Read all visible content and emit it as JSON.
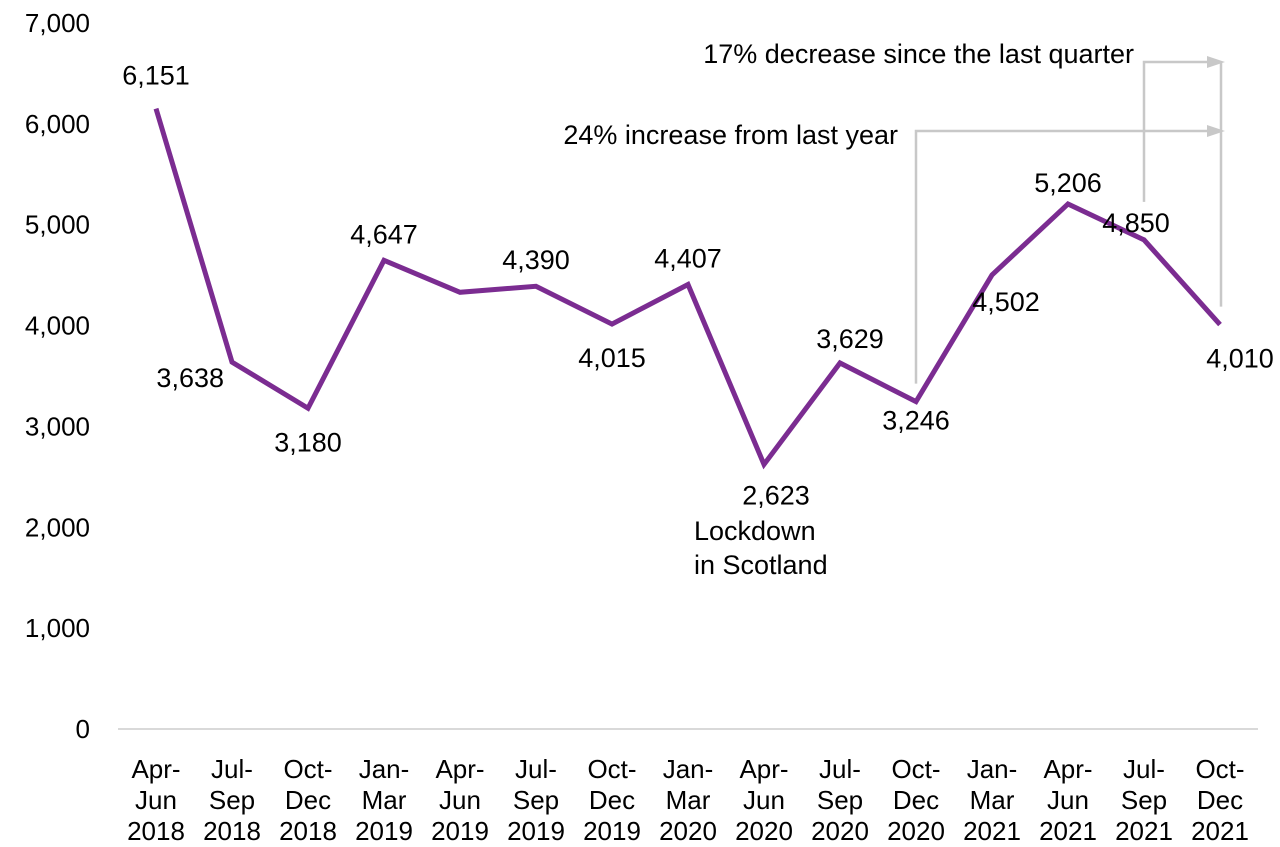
{
  "chart_data": {
    "type": "line",
    "categories": [
      [
        "Apr-",
        "Jun",
        "2018"
      ],
      [
        "Jul-",
        "Sep",
        "2018"
      ],
      [
        "Oct-",
        "Dec",
        "2018"
      ],
      [
        "Jan-",
        "Mar",
        "2019"
      ],
      [
        "Apr-",
        "Jun",
        "2019"
      ],
      [
        "Jul-",
        "Sep",
        "2019"
      ],
      [
        "Oct-",
        "Dec",
        "2019"
      ],
      [
        "Jan-",
        "Mar",
        "2020"
      ],
      [
        "Apr-",
        "Jun",
        "2020"
      ],
      [
        "Jul-",
        "Sep",
        "2020"
      ],
      [
        "Oct-",
        "Dec",
        "2020"
      ],
      [
        "Jan-",
        "Mar",
        "2021"
      ],
      [
        "Apr-",
        "Jun",
        "2021"
      ],
      [
        "Jul-",
        "Sep",
        "2021"
      ],
      [
        "Oct-",
        "Dec",
        "2021"
      ]
    ],
    "values": [
      6151,
      3638,
      3180,
      4647,
      4330,
      4390,
      4015,
      4407,
      2623,
      3629,
      3246,
      4502,
      5206,
      4850,
      4010
    ],
    "data_labels": [
      "6,151",
      "3,638",
      "3,180",
      "4,647",
      "",
      "4,390",
      "4,015",
      "4,407",
      "2,623",
      "3,629",
      "3,246",
      "4,502",
      "5,206",
      "4,850",
      "4,010"
    ],
    "y_ticks": [
      "0",
      "1,000",
      "2,000",
      "3,000",
      "4,000",
      "5,000",
      "6,000",
      "7,000"
    ],
    "ylim": [
      0,
      7000
    ],
    "line_color": "#7B2C91",
    "annotation_color": "#C8C8C8",
    "grid": false,
    "annotations": {
      "lockdown": [
        "Lockdown",
        "in Scotland"
      ],
      "year_change": "24% increase from last year",
      "quarter_change": "17% decrease since the last quarter"
    }
  }
}
